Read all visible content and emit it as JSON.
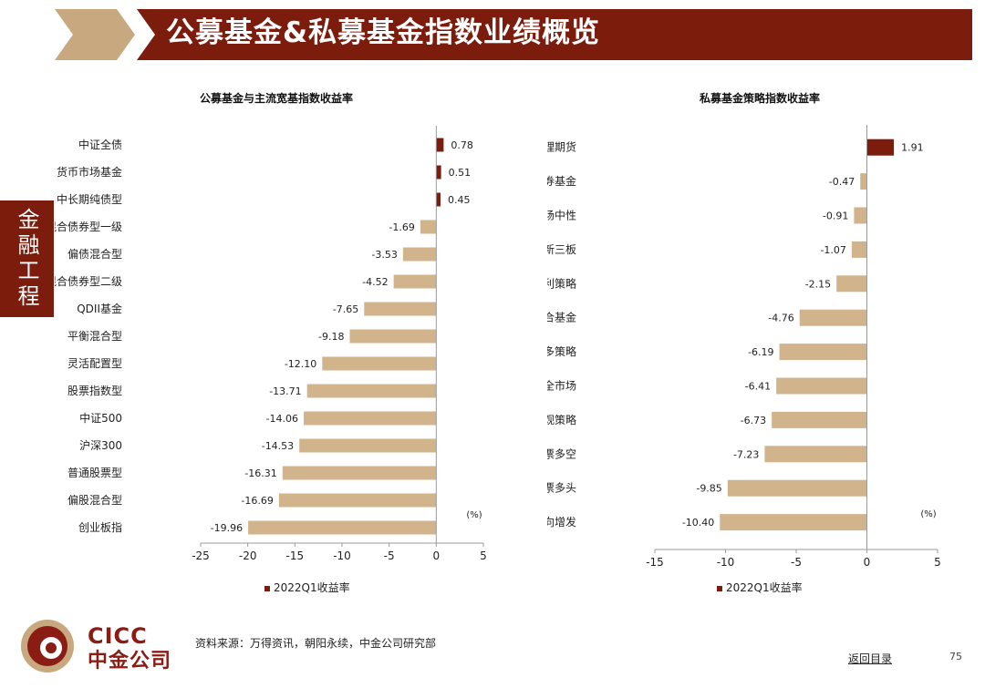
{
  "header": {
    "title": "公募基金&私募基金指数业绩概览",
    "side_tab": "金融工程",
    "colors": {
      "banner": "#7b1c0d",
      "chevron": "#c8a97f"
    }
  },
  "footer": {
    "logo_en": "CICC",
    "logo_cn": "中金公司",
    "source": "资料来源：万得资讯，朝阳永续，中金公司研究部",
    "back_link": "返回目录",
    "page_number": "75"
  },
  "chart_data": [
    {
      "type": "bar",
      "orientation": "horizontal",
      "title": "公募基金与主流宽基指数收益率",
      "unit_label": "(%)",
      "xlim": [
        -25,
        5
      ],
      "xticks": [
        -25,
        -20,
        -15,
        -10,
        -5,
        0,
        5
      ],
      "legend": "2022Q1收益率",
      "legend_position": "bottom",
      "grid": false,
      "colors": {
        "positive": "#7b1c0d",
        "negative": "#d2b48c"
      },
      "categories": [
        "中证全债",
        "货币市场基金",
        "中长期纯债型",
        "混合债券型一级",
        "偏债混合型",
        "混合债券型二级",
        "QDII基金",
        "平衡混合型",
        "灵活配置型",
        "股票指数型",
        "中证500",
        "沪深300",
        "普通股票型",
        "偏股混合型",
        "创业板指"
      ],
      "values": [
        0.78,
        0.51,
        0.45,
        -1.69,
        -3.53,
        -4.52,
        -7.65,
        -9.18,
        -12.1,
        -13.71,
        -14.06,
        -14.53,
        -16.31,
        -16.69,
        -19.96
      ],
      "value_labels": [
        "0.78",
        "0.51",
        "0.45",
        "-1.69",
        "-3.53",
        "-4.52",
        "-7.65",
        "-9.18",
        "-12.10",
        "-13.71",
        "-14.06",
        "-14.53",
        "-16.31",
        "-16.69",
        "-19.96"
      ]
    },
    {
      "type": "bar",
      "orientation": "horizontal",
      "title": "私募基金策略指数收益率",
      "unit_label": "(%)",
      "xlim": [
        -15,
        5
      ],
      "xticks": [
        -15,
        -10,
        -5,
        0,
        5
      ],
      "legend": "2022Q1收益率",
      "legend_position": "bottom",
      "grid": false,
      "colors": {
        "positive": "#7b1c0d",
        "negative": "#d2b48c"
      },
      "categories": [
        "管理期货",
        "债券基金",
        "股票市场中性",
        "新三板",
        "套利策略",
        "组合基金",
        "多策略",
        "私募全市场",
        "宏观策略",
        "股票多空",
        "股票多头",
        "定向增发"
      ],
      "values": [
        1.91,
        -0.47,
        -0.91,
        -1.07,
        -2.15,
        -4.76,
        -6.19,
        -6.41,
        -6.73,
        -7.23,
        -9.85,
        -10.4
      ],
      "value_labels": [
        "1.91",
        "-0.47",
        "-0.91",
        "-1.07",
        "-2.15",
        "-4.76",
        "-6.19",
        "-6.41",
        "-6.73",
        "-7.23",
        "-9.85",
        "-10.40"
      ]
    }
  ]
}
